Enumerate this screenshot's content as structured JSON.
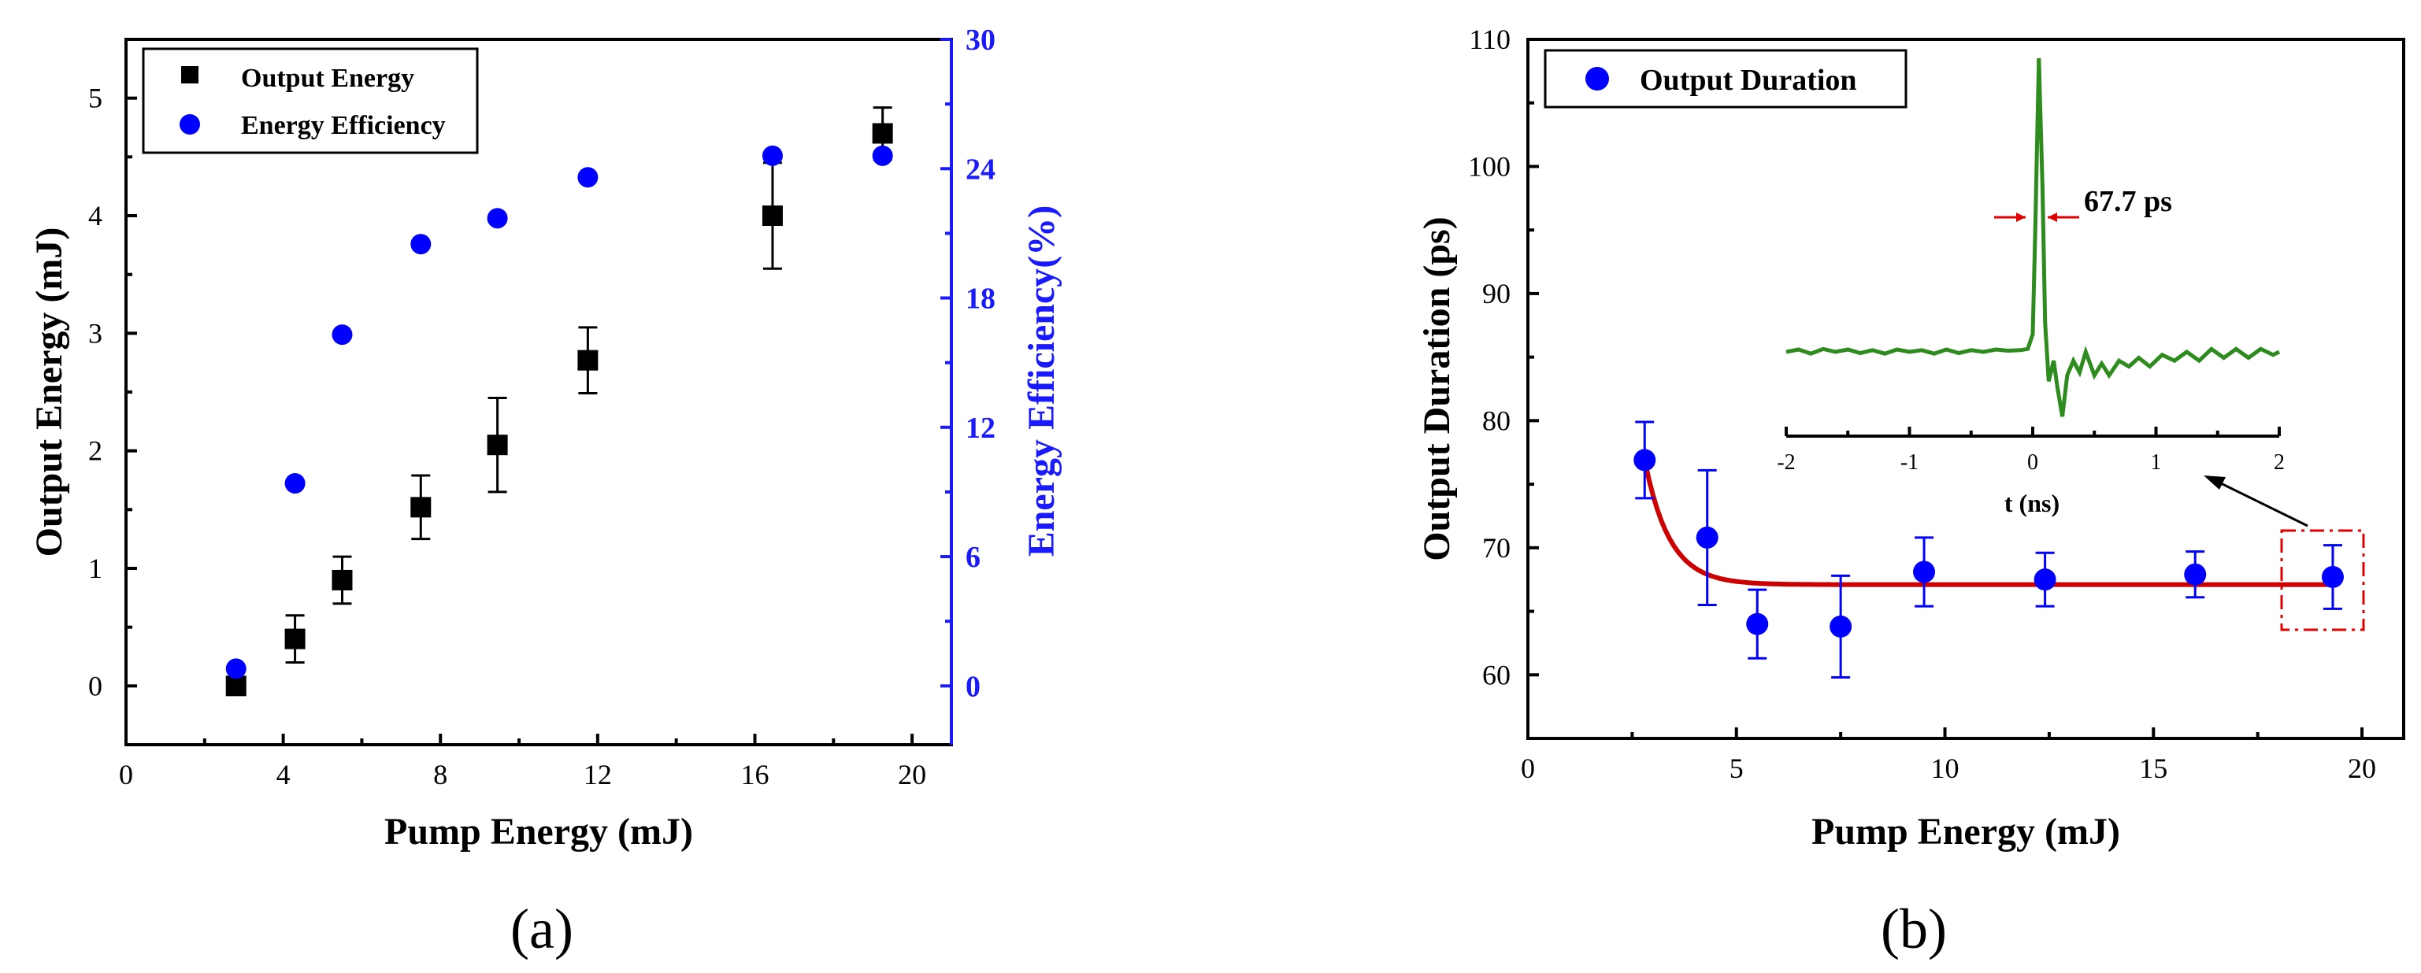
{
  "chart_data": [
    {
      "type": "scatter",
      "panel_label": "(a)",
      "xlabel": "Pump Energy (mJ)",
      "ylabel": "Output Energy (mJ)",
      "y2label": "Energy Efficiency(%)",
      "xlim": [
        0,
        21
      ],
      "ylim": [
        -0.5,
        5.5
      ],
      "y2lim": [
        -2.7273,
        30
      ],
      "xticks": [
        "0",
        "4",
        "8",
        "12",
        "16",
        "20"
      ],
      "yticks": [
        "0",
        "1",
        "2",
        "3",
        "4",
        "5"
      ],
      "y2ticks": [
        "0",
        "6",
        "12",
        "18",
        "24",
        "30"
      ],
      "legend": [
        "Output Energy",
        "Energy Efficiency"
      ],
      "legend_position": "top-left",
      "series": [
        {
          "name": "Output Energy",
          "axis": "left",
          "marker": "square",
          "color": "#000000",
          "x": [
            2.8,
            4.3,
            5.5,
            7.5,
            9.45,
            11.75,
            16.45,
            19.25
          ],
          "y": [
            0.0,
            0.4,
            0.9,
            1.52,
            2.05,
            2.77,
            4.0,
            4.7
          ],
          "err": [
            0.05,
            0.2,
            0.2,
            0.27,
            0.4,
            0.28,
            0.45,
            0.22
          ]
        },
        {
          "name": "Energy Efficiency",
          "axis": "right",
          "marker": "circle",
          "color": "#0000ff",
          "x": [
            2.8,
            4.3,
            5.5,
            7.5,
            9.45,
            11.75,
            16.45,
            19.25
          ],
          "y": [
            0.8,
            9.4,
            16.3,
            20.5,
            21.7,
            23.6,
            24.6,
            24.6
          ]
        }
      ]
    },
    {
      "type": "scatter",
      "panel_label": "(b)",
      "xlabel": "Pump Energy (mJ)",
      "ylabel": "Output Duration (ps)",
      "xlim": [
        0,
        21
      ],
      "ylim": [
        55,
        110
      ],
      "xticks": [
        "0",
        "5",
        "10",
        "15",
        "20"
      ],
      "yticks": [
        "60",
        "70",
        "80",
        "90",
        "100",
        "110"
      ],
      "legend": [
        "Output Duration"
      ],
      "legend_position": "top-left",
      "series": [
        {
          "name": "Output Duration",
          "marker": "circle",
          "color": "#0000ff",
          "x": [
            2.8,
            4.3,
            5.5,
            7.5,
            9.5,
            12.4,
            16.0,
            19.3
          ],
          "y": [
            76.9,
            70.8,
            64.0,
            63.8,
            68.1,
            67.5,
            67.9,
            67.7
          ],
          "err": [
            3.0,
            5.3,
            2.7,
            4.0,
            2.7,
            2.1,
            1.8,
            2.5
          ]
        },
        {
          "name": "fit",
          "type": "line",
          "color": "#cc0000",
          "plateau": 67.1,
          "start_x": 2.8,
          "start_y": 76.9,
          "decay": 0.6,
          "x_end": 19.3
        }
      ],
      "inset": {
        "xlabel": "t (ns)",
        "xlim": [
          -2,
          2
        ],
        "xticks": [
          "-2",
          "-1",
          "0",
          "1",
          "2"
        ],
        "annotation": "67.7 ps",
        "trace_color": "#2e8b1e",
        "trace": [
          [
            -2,
            0
          ],
          [
            -1.9,
            0.008
          ],
          [
            -1.8,
            -0.006
          ],
          [
            -1.7,
            0.01
          ],
          [
            -1.6,
            0.0
          ],
          [
            -1.5,
            0.008
          ],
          [
            -1.4,
            -0.004
          ],
          [
            -1.3,
            0.006
          ],
          [
            -1.2,
            -0.006
          ],
          [
            -1.1,
            0.008
          ],
          [
            -1.0,
            0.0
          ],
          [
            -0.9,
            0.006
          ],
          [
            -0.8,
            -0.006
          ],
          [
            -0.7,
            0.008
          ],
          [
            -0.6,
            -0.004
          ],
          [
            -0.5,
            0.006
          ],
          [
            -0.4,
            0.0
          ],
          [
            -0.3,
            0.008
          ],
          [
            -0.2,
            0.004
          ],
          [
            -0.1,
            0.006
          ],
          [
            -0.04,
            0.01
          ],
          [
            0.0,
            0.06
          ],
          [
            0.02,
            0.4
          ],
          [
            0.05,
            1.0
          ],
          [
            0.08,
            0.55
          ],
          [
            0.1,
            0.1
          ],
          [
            0.13,
            -0.1
          ],
          [
            0.17,
            -0.03
          ],
          [
            0.2,
            -0.12
          ],
          [
            0.24,
            -0.22
          ],
          [
            0.28,
            -0.08
          ],
          [
            0.33,
            -0.03
          ],
          [
            0.38,
            -0.07
          ],
          [
            0.43,
            0.0
          ],
          [
            0.5,
            -0.08
          ],
          [
            0.56,
            -0.04
          ],
          [
            0.62,
            -0.08
          ],
          [
            0.7,
            -0.03
          ],
          [
            0.78,
            -0.05
          ],
          [
            0.86,
            -0.02
          ],
          [
            0.95,
            -0.05
          ],
          [
            1.05,
            -0.01
          ],
          [
            1.15,
            -0.03
          ],
          [
            1.25,
            0.0
          ],
          [
            1.35,
            -0.03
          ],
          [
            1.45,
            0.01
          ],
          [
            1.55,
            -0.02
          ],
          [
            1.65,
            0.01
          ],
          [
            1.75,
            -0.02
          ],
          [
            1.85,
            0.01
          ],
          [
            1.95,
            -0.01
          ],
          [
            2.0,
            0.0
          ]
        ]
      }
    }
  ]
}
